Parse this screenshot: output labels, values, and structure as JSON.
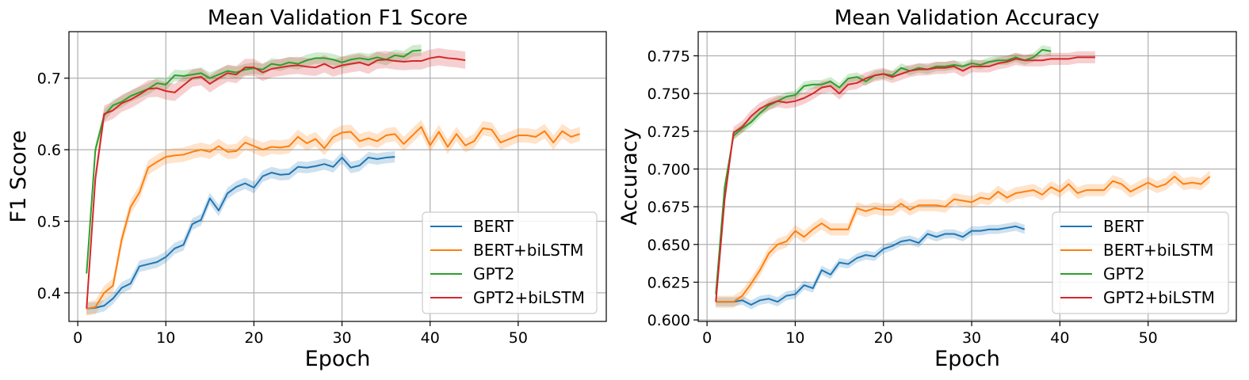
{
  "chart_data": [
    {
      "type": "line",
      "title": "Mean Validation F1 Score",
      "xlabel": "Epoch",
      "ylabel": "F1 Score",
      "xlim": [
        -1,
        60
      ],
      "ylim": [
        0.36,
        0.765
      ],
      "xticks": [
        0,
        10,
        20,
        30,
        40,
        50
      ],
      "xtick_labels": [
        "0",
        "10",
        "20",
        "30",
        "40",
        "50"
      ],
      "yticks": [
        0.4,
        0.5,
        0.6,
        0.7
      ],
      "ytick_labels": [
        "0.4",
        "0.5",
        "0.6",
        "0.7"
      ],
      "grid": true,
      "legend": "lower-right",
      "series": [
        {
          "name": "BERT",
          "color": "#1f77b4",
          "band": 0.008,
          "start": 1,
          "values": [
            0.378,
            0.379,
            0.382,
            0.392,
            0.407,
            0.413,
            0.437,
            0.44,
            0.443,
            0.45,
            0.462,
            0.467,
            0.496,
            0.502,
            0.532,
            0.515,
            0.539,
            0.548,
            0.553,
            0.547,
            0.563,
            0.568,
            0.565,
            0.566,
            0.576,
            0.575,
            0.577,
            0.58,
            0.576,
            0.589,
            0.575,
            0.578,
            0.589,
            0.587,
            0.589,
            0.59
          ]
        },
        {
          "name": "BERT+biLSTM",
          "color": "#ff7f0e",
          "band": 0.01,
          "start": 1,
          "values": [
            0.378,
            0.38,
            0.4,
            0.41,
            0.475,
            0.52,
            0.54,
            0.575,
            0.583,
            0.59,
            0.592,
            0.593,
            0.597,
            0.6,
            0.597,
            0.605,
            0.597,
            0.598,
            0.61,
            0.605,
            0.6,
            0.604,
            0.603,
            0.605,
            0.618,
            0.609,
            0.615,
            0.602,
            0.618,
            0.624,
            0.625,
            0.612,
            0.616,
            0.612,
            0.62,
            0.622,
            0.608,
            0.62,
            0.632,
            0.606,
            0.625,
            0.604,
            0.622,
            0.606,
            0.612,
            0.63,
            0.628,
            0.61,
            0.615,
            0.62,
            0.62,
            0.618,
            0.626,
            0.61,
            0.626,
            0.618,
            0.622
          ]
        },
        {
          "name": "GPT2",
          "color": "#2ca02c",
          "band": 0.008,
          "start": 1,
          "values": [
            0.427,
            0.6,
            0.648,
            0.662,
            0.667,
            0.675,
            0.68,
            0.685,
            0.693,
            0.691,
            0.704,
            0.703,
            0.705,
            0.707,
            0.7,
            0.705,
            0.71,
            0.708,
            0.712,
            0.714,
            0.712,
            0.72,
            0.718,
            0.722,
            0.72,
            0.725,
            0.728,
            0.728,
            0.726,
            0.722,
            0.726,
            0.728,
            0.726,
            0.729,
            0.726,
            0.732,
            0.73,
            0.738,
            0.739
          ]
        },
        {
          "name": "GPT2+biLSTM",
          "color": "#d62728",
          "band": 0.012,
          "start": 1,
          "values": [
            0.378,
            0.56,
            0.65,
            0.655,
            0.665,
            0.67,
            0.677,
            0.685,
            0.686,
            0.682,
            0.68,
            0.69,
            0.7,
            0.702,
            0.692,
            0.7,
            0.707,
            0.705,
            0.715,
            0.715,
            0.708,
            0.713,
            0.715,
            0.717,
            0.718,
            0.716,
            0.715,
            0.72,
            0.714,
            0.718,
            0.72,
            0.722,
            0.718,
            0.725,
            0.726,
            0.724,
            0.723,
            0.724,
            0.724,
            0.728,
            0.73,
            0.728,
            0.727,
            0.725
          ]
        }
      ]
    },
    {
      "type": "line",
      "title": "Mean Validation Accuracy",
      "xlabel": "Epoch",
      "ylabel": "Accuracy",
      "xlim": [
        -1,
        60
      ],
      "ylim": [
        0.599,
        0.791
      ],
      "xticks": [
        0,
        10,
        20,
        30,
        40,
        50
      ],
      "xtick_labels": [
        "0",
        "10",
        "20",
        "30",
        "40",
        "50"
      ],
      "yticks": [
        0.6,
        0.625,
        0.65,
        0.675,
        0.7,
        0.725,
        0.75,
        0.775
      ],
      "ytick_labels": [
        "0.600",
        "0.625",
        "0.650",
        "0.675",
        "0.700",
        "0.725",
        "0.750",
        "0.775"
      ],
      "grid": true,
      "legend": "lower-right",
      "series": [
        {
          "name": "BERT",
          "color": "#1f77b4",
          "band": 0.003,
          "start": 1,
          "values": [
            0.612,
            0.612,
            0.612,
            0.613,
            0.61,
            0.613,
            0.614,
            0.612,
            0.616,
            0.617,
            0.623,
            0.621,
            0.633,
            0.63,
            0.638,
            0.637,
            0.641,
            0.643,
            0.642,
            0.647,
            0.649,
            0.652,
            0.653,
            0.651,
            0.657,
            0.655,
            0.657,
            0.657,
            0.655,
            0.659,
            0.659,
            0.66,
            0.66,
            0.661,
            0.662,
            0.66
          ]
        },
        {
          "name": "BERT+biLSTM",
          "color": "#ff7f0e",
          "band": 0.004,
          "start": 1,
          "values": [
            0.612,
            0.612,
            0.612,
            0.616,
            0.624,
            0.633,
            0.644,
            0.65,
            0.652,
            0.659,
            0.655,
            0.66,
            0.664,
            0.66,
            0.66,
            0.66,
            0.674,
            0.672,
            0.674,
            0.673,
            0.673,
            0.677,
            0.673,
            0.676,
            0.676,
            0.676,
            0.675,
            0.68,
            0.679,
            0.678,
            0.681,
            0.68,
            0.685,
            0.681,
            0.684,
            0.685,
            0.686,
            0.683,
            0.688,
            0.685,
            0.69,
            0.684,
            0.686,
            0.686,
            0.686,
            0.692,
            0.69,
            0.685,
            0.688,
            0.691,
            0.688,
            0.69,
            0.695,
            0.69,
            0.691,
            0.69,
            0.695
          ]
        },
        {
          "name": "GPT2",
          "color": "#2ca02c",
          "band": 0.003,
          "start": 1,
          "values": [
            0.617,
            0.688,
            0.722,
            0.727,
            0.731,
            0.737,
            0.742,
            0.745,
            0.748,
            0.749,
            0.755,
            0.756,
            0.756,
            0.758,
            0.754,
            0.76,
            0.761,
            0.758,
            0.762,
            0.763,
            0.762,
            0.767,
            0.765,
            0.767,
            0.766,
            0.768,
            0.768,
            0.769,
            0.768,
            0.77,
            0.769,
            0.771,
            0.772,
            0.772,
            0.774,
            0.772,
            0.774,
            0.779,
            0.778
          ]
        },
        {
          "name": "GPT2+biLSTM",
          "color": "#d62728",
          "band": 0.004,
          "start": 1,
          "values": [
            0.612,
            0.68,
            0.724,
            0.728,
            0.735,
            0.74,
            0.743,
            0.745,
            0.744,
            0.745,
            0.747,
            0.75,
            0.754,
            0.755,
            0.75,
            0.756,
            0.757,
            0.76,
            0.762,
            0.763,
            0.761,
            0.763,
            0.765,
            0.766,
            0.766,
            0.767,
            0.767,
            0.768,
            0.765,
            0.768,
            0.768,
            0.768,
            0.77,
            0.771,
            0.773,
            0.772,
            0.772,
            0.772,
            0.773,
            0.773,
            0.773,
            0.774,
            0.774,
            0.774
          ]
        }
      ]
    }
  ]
}
